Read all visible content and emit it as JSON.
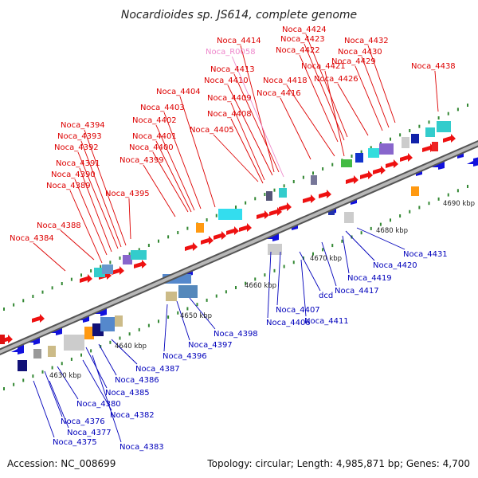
{
  "title": "Nocardioides sp. JS614, complete genome",
  "accession": "Accession: NC_008699",
  "summary": "Topology: circular; Length: 4,985,871 bp; Genes: 4,700",
  "colors": {
    "forward_label": "#dd0000",
    "reverse_label": "#0000bb",
    "rna_label": "#ee88cc",
    "axis": "#888888",
    "tick": "#338833"
  },
  "scale": {
    "ticks": [
      {
        "label": "4630 kbp"
      },
      {
        "label": "4640 kbp"
      },
      {
        "label": "4650 kbp"
      },
      {
        "label": "4660 kbp"
      },
      {
        "label": "4670 kbp"
      },
      {
        "label": "4680 kbp"
      },
      {
        "label": "4690 kbp"
      }
    ]
  },
  "forward_genes": [
    "Noca_4384",
    "Noca_4388",
    "Noca_4389",
    "Noca_4390",
    "Noca_4391",
    "Noca_4392",
    "Noca_4393",
    "Noca_4394",
    "Noca_4395",
    "Noca_4399",
    "Noca_4400",
    "Noca_4401",
    "Noca_4402",
    "Noca_4403",
    "Noca_4404",
    "Noca_4405",
    "Noca_4408",
    "Noca_4409",
    "Noca_4410",
    "Noca_4413",
    "Noca_4414",
    "Noca_4416",
    "Noca_4418",
    "Noca_4421",
    "Noca_4422",
    "Noca_4423",
    "Noca_4424",
    "Noca_4426",
    "Noca_4429",
    "Noca_4430",
    "Noca_4432",
    "Noca_4438"
  ],
  "rna_genes": [
    "Noca_R0058"
  ],
  "reverse_genes": [
    "Noca_4375",
    "Noca_4376",
    "Noca_4377",
    "Noca_4380",
    "Noca_4382",
    "Noca_4383",
    "Noca_4385",
    "Noca_4386",
    "Noca_4387",
    "Noca_4396",
    "Noca_4397",
    "Noca_4398",
    "Noca_4406",
    "Noca_4407",
    "Noca_4411",
    "dcd",
    "Noca_4417",
    "Noca_4419",
    "Noca_4420",
    "Noca_4431"
  ]
}
